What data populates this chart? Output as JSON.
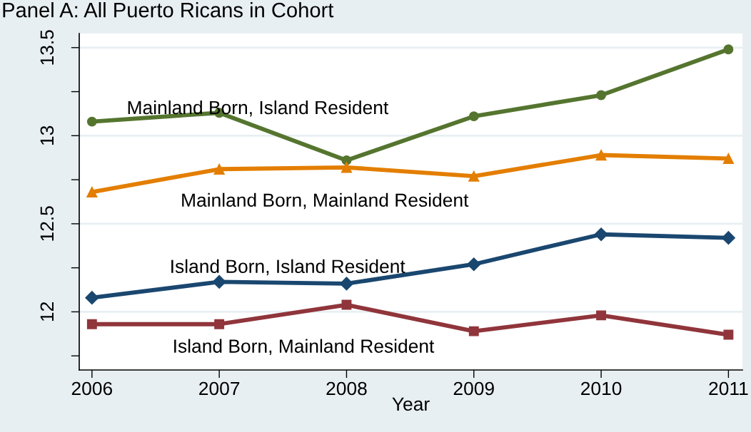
{
  "chart_data": {
    "type": "line",
    "title": "Panel A: All Puerto Ricans in Cohort",
    "xlabel": "Year",
    "x": [
      2006,
      2007,
      2008,
      2009,
      2010,
      2011
    ],
    "xlim": [
      2005.9,
      2011.11
    ],
    "xticks": [
      2006,
      2007,
      2008,
      2009,
      2010,
      2011
    ],
    "ylim": [
      11.67,
      13.58
    ],
    "yticks": [
      {
        "value": 11.75,
        "label": null
      },
      12,
      {
        "value": 12.25,
        "label": null
      },
      12.5,
      {
        "value": 12.75,
        "label": null
      },
      13,
      {
        "value": 13.25,
        "label": null
      },
      13.5
    ],
    "grid": "y",
    "legend": false,
    "line_style": "solid",
    "series": [
      {
        "name": "Mainland Born, Island Resident",
        "color": "#55752f",
        "marker": "circle",
        "values": [
          13.08,
          13.13,
          12.86,
          13.11,
          13.23,
          13.49
        ]
      },
      {
        "name": "Mainland Born, Mainland Resident",
        "color": "#e37e00",
        "marker": "triangle",
        "values": [
          12.68,
          12.81,
          12.82,
          12.77,
          12.89,
          12.87
        ]
      },
      {
        "name": "Island Born, Island Resident",
        "color": "#1a476f",
        "marker": "diamond",
        "values": [
          12.08,
          12.17,
          12.16,
          12.27,
          12.44,
          12.42
        ]
      },
      {
        "name": "Island Born, Mainland Resident",
        "color": "#90353b",
        "marker": "square",
        "values": [
          11.93,
          11.93,
          12.04,
          11.89,
          11.98,
          11.87
        ]
      }
    ]
  }
}
